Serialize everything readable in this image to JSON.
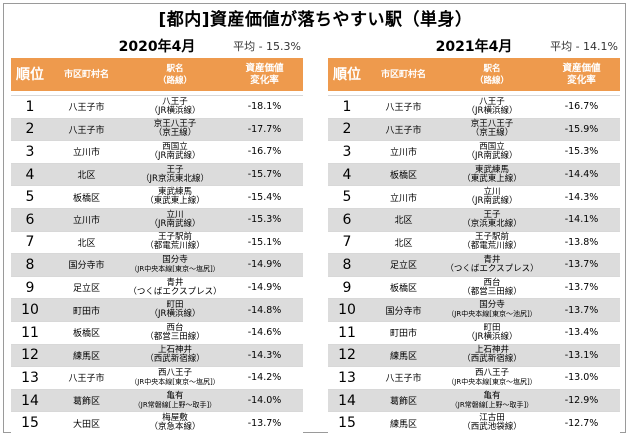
{
  "title": "[都内]資産価値が落ちやすい駅（単身）",
  "headers": {
    "rank": "順位",
    "city": "市区町村名",
    "station_l1": "駅名",
    "station_l2": "（路線）",
    "rate_l1": "資産価値",
    "rate_l2": "変化率"
  },
  "panels": [
    {
      "year": "2020年4月",
      "avg": "平均 - 15.3%",
      "rows": [
        {
          "rank": "1",
          "city": "八王子市",
          "station": "八王子",
          "line": "（JR横浜線）",
          "rate": "-18.1%"
        },
        {
          "rank": "2",
          "city": "八王子市",
          "station": "京王八王子",
          "line": "（京王線）",
          "rate": "-17.7%"
        },
        {
          "rank": "3",
          "city": "立川市",
          "station": "西国立",
          "line": "（JR南武線）",
          "rate": "-16.7%"
        },
        {
          "rank": "4",
          "city": "北区",
          "station": "王子",
          "line": "（JR京浜東北線）",
          "rate": "-15.7%"
        },
        {
          "rank": "5",
          "city": "板橋区",
          "station": "東武練馬",
          "line": "（東武東上線）",
          "rate": "-15.4%"
        },
        {
          "rank": "6",
          "city": "立川市",
          "station": "立川",
          "line": "（JR南武線）",
          "rate": "-15.3%"
        },
        {
          "rank": "7",
          "city": "北区",
          "station": "王子駅前",
          "line": "（都電荒川線）",
          "rate": "-15.1%"
        },
        {
          "rank": "8",
          "city": "国分寺市",
          "station": "国分寺",
          "line": "（JR中央本線[東京～塩尻]）",
          "rate": "-14.9%"
        },
        {
          "rank": "9",
          "city": "足立区",
          "station": "青井",
          "line": "（つくばエクスプレス）",
          "rate": "-14.9%"
        },
        {
          "rank": "10",
          "city": "町田市",
          "station": "町田",
          "line": "（JR横浜線）",
          "rate": "-14.8%"
        },
        {
          "rank": "11",
          "city": "板橋区",
          "station": "西台",
          "line": "（都営三田線）",
          "rate": "-14.6%"
        },
        {
          "rank": "12",
          "city": "練馬区",
          "station": "上石神井",
          "line": "（西武新宿線）",
          "rate": "-14.3%"
        },
        {
          "rank": "13",
          "city": "八王子市",
          "station": "西八王子",
          "line": "（JR中央本線[東京～塩尻]）",
          "rate": "-14.2%"
        },
        {
          "rank": "14",
          "city": "葛飾区",
          "station": "亀有",
          "line": "（JR常磐線[上野～取手]）",
          "rate": "-14.0%"
        },
        {
          "rank": "15",
          "city": "大田区",
          "station": "梅屋敷",
          "line": "（京急本線）",
          "rate": "-13.7%"
        }
      ]
    },
    {
      "year": "2021年4月",
      "avg": "平均 - 14.1%",
      "rows": [
        {
          "rank": "1",
          "city": "八王子市",
          "station": "八王子",
          "line": "（JR横浜線）",
          "rate": "-16.7%"
        },
        {
          "rank": "2",
          "city": "八王子市",
          "station": "京王八王子",
          "line": "（京王線）",
          "rate": "-15.9%"
        },
        {
          "rank": "3",
          "city": "立川市",
          "station": "西国立",
          "line": "（JR南武線）",
          "rate": "-15.3%"
        },
        {
          "rank": "4",
          "city": "板橋区",
          "station": "東武練馬",
          "line": "（東武東上線）",
          "rate": "-14.4%"
        },
        {
          "rank": "5",
          "city": "立川市",
          "station": "立川",
          "line": "（JR南武線）",
          "rate": "-14.3%"
        },
        {
          "rank": "6",
          "city": "北区",
          "station": "王子",
          "line": "（京浜東北線）",
          "rate": "-14.1%"
        },
        {
          "rank": "7",
          "city": "北区",
          "station": "王子駅前",
          "line": "（都電荒川線）",
          "rate": "-13.8%"
        },
        {
          "rank": "8",
          "city": "足立区",
          "station": "青井",
          "line": "（つくばエクスプレス）",
          "rate": "-13.7%"
        },
        {
          "rank": "9",
          "city": "板橋区",
          "station": "西台",
          "line": "（都営三田線）",
          "rate": "-13.7%"
        },
        {
          "rank": "10",
          "city": "国分寺市",
          "station": "国分寺",
          "line": "（JR中央本線[東京～池尻]）",
          "rate": "-13.7%"
        },
        {
          "rank": "11",
          "city": "町田市",
          "station": "町田",
          "line": "（JR横浜線）",
          "rate": "-13.4%"
        },
        {
          "rank": "12",
          "city": "練馬区",
          "station": "上石神井",
          "line": "（西武新宿線）",
          "rate": "-13.1%"
        },
        {
          "rank": "13",
          "city": "八王子市",
          "station": "西八王子",
          "line": "（JR中央本線[東京～塩尻]）",
          "rate": "-13.0%"
        },
        {
          "rank": "14",
          "city": "葛飾区",
          "station": "亀有",
          "line": "（JR常磐線[上野～取手]）",
          "rate": "-12.9%"
        },
        {
          "rank": "15",
          "city": "練馬区",
          "station": "江古田",
          "line": "（西武池袋線）",
          "rate": "-12.7%"
        }
      ]
    }
  ]
}
